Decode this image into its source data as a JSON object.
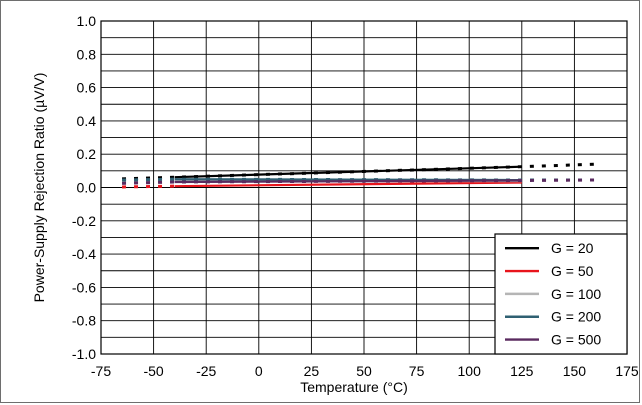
{
  "chart_data": {
    "type": "line",
    "title": "",
    "xlabel": "Temperature (°C)",
    "ylabel": "Power-Supply Rejection Ratio (µV/V)",
    "xlim": [
      -75,
      175
    ],
    "ylim": [
      -1.0,
      1.0
    ],
    "x_ticks": [
      "-75",
      "-50",
      "-25",
      "0",
      "25",
      "50",
      "75",
      "100",
      "125",
      "150",
      "175"
    ],
    "y_ticks": [
      "1.0",
      "0.8",
      "0.6",
      "0.4",
      "0.2",
      "0.0",
      "-0.2",
      "-0.4",
      "-0.6",
      "-0.8",
      "-1.0"
    ],
    "grid": true,
    "legend_position": "bottom-right",
    "series": [
      {
        "name": "G = 20",
        "color": "#000000",
        "solid": [
          [
            -40,
            0.062
          ],
          [
            125,
            0.125
          ]
        ],
        "dashed": [
          [
            -65,
            0.052
          ],
          [
            -40,
            0.062
          ],
          [
            125,
            0.125
          ],
          [
            160,
            0.14
          ]
        ]
      },
      {
        "name": "G = 50",
        "color": "#e8141c",
        "solid": [
          [
            -40,
            0.008
          ],
          [
            125,
            0.03
          ]
        ],
        "dashed": [
          [
            -65,
            0.003
          ],
          [
            -40,
            0.008
          ]
        ]
      },
      {
        "name": "G = 100",
        "color": "#b5b5b5",
        "solid": [
          [
            -40,
            0.038
          ],
          [
            125,
            0.038
          ]
        ],
        "dashed": [
          [
            -65,
            0.034
          ],
          [
            -40,
            0.038
          ]
        ]
      },
      {
        "name": "G = 200",
        "color": "#2f6072",
        "solid": [
          [
            -40,
            0.05
          ],
          [
            125,
            0.045
          ]
        ],
        "dashed": [
          [
            -65,
            0.045
          ],
          [
            -40,
            0.05
          ],
          [
            125,
            0.045
          ],
          [
            160,
            0.045
          ]
        ]
      },
      {
        "name": "G = 500",
        "color": "#5a2a5f",
        "solid": [
          [
            -40,
            0.033
          ],
          [
            125,
            0.042
          ]
        ],
        "dashed": [
          [
            -65,
            0.025
          ],
          [
            -40,
            0.033
          ],
          [
            125,
            0.042
          ],
          [
            160,
            0.045
          ]
        ]
      }
    ]
  }
}
